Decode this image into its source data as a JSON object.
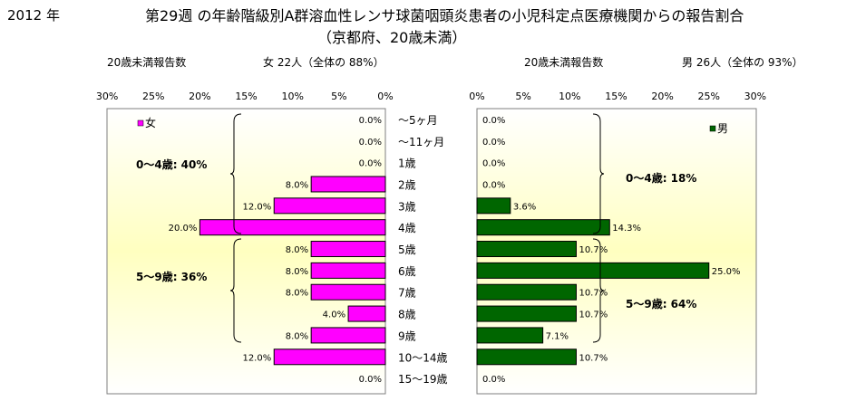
{
  "header": {
    "year": "2012 年",
    "title": "第29週 の年齢階級別A群溶血性レンサ球菌咽頭炎患者の小児科定点医療機関からの報告割合",
    "subtitle": "（京都府、20歳未満）"
  },
  "panels": {
    "female": {
      "heading": "20歳未満報告数",
      "total": "女 22人（全体の 88%）",
      "legend": "女",
      "color": "#ff00ff",
      "group_labels": [
        "0～4歳: 40%",
        "5～9歳: 36%"
      ]
    },
    "male": {
      "heading": "20歳未満報告数",
      "total": "男 26人（全体の 93%）",
      "legend": "男",
      "color": "#006600",
      "group_labels": [
        "0～4歳: 18%",
        "5～9歳: 64%"
      ]
    }
  },
  "chart_data": {
    "type": "bar",
    "categories": [
      "～5ヶ月",
      "～11ヶ月",
      "1歳",
      "2歳",
      "3歳",
      "4歳",
      "5歳",
      "6歳",
      "7歳",
      "8歳",
      "9歳",
      "10～14歳",
      "15～19歳"
    ],
    "xlim": [
      0,
      30
    ],
    "xticks": [
      "0%",
      "5%",
      "10%",
      "15%",
      "20%",
      "25%",
      "30%"
    ],
    "series": [
      {
        "name": "女",
        "values": [
          0.0,
          0.0,
          0.0,
          8.0,
          12.0,
          20.0,
          8.0,
          8.0,
          8.0,
          4.0,
          8.0,
          12.0,
          0.0
        ],
        "labels": [
          "0.0%",
          "0.0%",
          "0.0%",
          "8.0%",
          "12.0%",
          "20.0%",
          "8.0%",
          "8.0%",
          "8.0%",
          "4.0%",
          "8.0%",
          "12.0%",
          "0.0%"
        ]
      },
      {
        "name": "男",
        "values": [
          0.0,
          0.0,
          0.0,
          0.0,
          3.6,
          14.3,
          10.7,
          25.0,
          10.7,
          10.7,
          7.1,
          10.7,
          0.0
        ],
        "labels": [
          "0.0%",
          "0.0%",
          "0.0%",
          "0.0%",
          "3.6%",
          "14.3%",
          "10.7%",
          "25.0%",
          "10.7%",
          "10.7%",
          "7.1%",
          "10.7%",
          "0.0%"
        ]
      }
    ],
    "colors": {
      "plot_bg_center": "#ffffc0",
      "plot_bg_edge": "#ffffff"
    }
  }
}
